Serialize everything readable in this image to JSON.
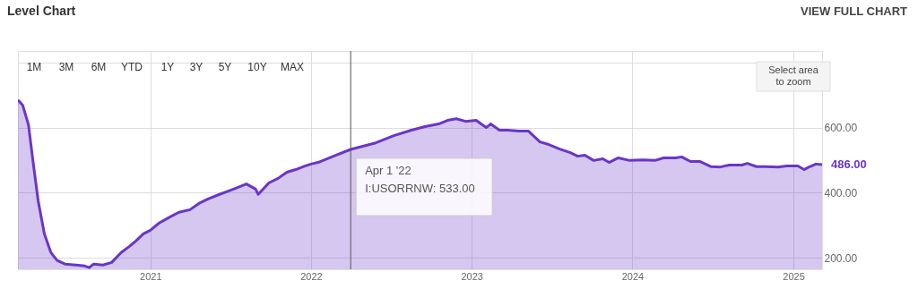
{
  "chart_data": {
    "type": "area",
    "title": "Level Chart",
    "annotations": [
      "VIEW FULL CHART",
      "1M",
      "3M",
      "6M",
      "YTD",
      "1Y",
      "3Y",
      "5Y",
      "10Y",
      "MAX",
      "Select area\nto zoom",
      {
        "text": "Apr 1 '22\nI:USORRNW: 533.00",
        "x": "2022-04-01",
        "y": 533
      },
      {
        "text": "486.00",
        "x": "2025-03-07",
        "y": 486
      }
    ],
    "x": [
      "2020-03-06",
      "2020-03-17",
      "2020-03-30",
      "2020-04-09",
      "2020-04-21",
      "2020-05-05",
      "2020-05-20",
      "2020-06-03",
      "2020-06-21",
      "2020-07-16",
      "2020-08-05",
      "2020-08-15",
      "2020-08-25",
      "2020-09-15",
      "2020-10-05",
      "2020-10-26",
      "2020-11-15",
      "2020-11-29",
      "2020-12-16",
      "2021-01-01",
      "2021-01-21",
      "2021-02-15",
      "2021-03-07",
      "2021-04-01",
      "2021-04-21",
      "2021-05-12",
      "2021-06-07",
      "2021-06-27",
      "2021-07-18",
      "2021-08-07",
      "2021-08-28",
      "2021-09-03",
      "2021-09-27",
      "2021-10-18",
      "2021-11-07",
      "2021-11-27",
      "2021-12-18",
      "2022-01-01",
      "2022-01-17",
      "2022-02-17",
      "2022-04-01",
      "2022-05-28",
      "2022-07-08",
      "2022-08-17",
      "2022-09-17",
      "2022-10-18",
      "2022-11-07",
      "2022-11-27",
      "2022-12-18",
      "2023-01-11",
      "2023-02-03",
      "2023-02-13",
      "2023-03-05",
      "2023-03-24",
      "2023-04-19",
      "2023-05-10",
      "2023-06-05",
      "2023-06-25",
      "2023-07-20",
      "2023-08-13",
      "2023-08-30",
      "2023-09-15",
      "2023-10-05",
      "2023-10-26",
      "2023-11-09",
      "2023-11-30",
      "2023-12-26",
      "2024-01-25",
      "2024-02-21",
      "2024-03-12",
      "2024-04-08",
      "2024-04-22",
      "2024-05-12",
      "2024-06-02",
      "2024-06-28",
      "2024-07-19",
      "2024-08-08",
      "2024-09-06",
      "2024-09-18",
      "2024-10-09",
      "2024-10-29",
      "2024-11-27",
      "2024-12-17",
      "2025-01-11",
      "2025-01-25",
      "2025-02-07",
      "2025-02-21",
      "2025-03-07"
    ],
    "series": [
      {
        "color": "#6a35c9",
        "values": [
          685,
          668,
          608,
          499,
          375,
          274,
          216,
          192,
          181,
          178,
          175,
          170,
          181,
          178,
          186,
          216,
          236,
          252,
          274,
          285,
          307,
          326,
          340,
          348,
          367,
          381,
          395,
          405,
          416,
          427,
          411,
          395,
          430,
          444,
          463,
          471,
          482,
          488,
          493,
          510,
          533,
          553,
          575,
          592,
          603,
          611,
          622,
          627,
          619,
          622,
          600,
          611,
          592,
          592,
          589,
          589,
          556,
          548,
          534,
          523,
          512,
          515,
          499,
          504,
          493,
          507,
          499,
          501,
          499,
          507,
          507,
          510,
          496,
          496,
          480,
          479,
          485,
          485,
          490,
          480,
          480,
          479,
          482,
          482,
          471,
          480,
          488,
          486
        ]
      }
    ],
    "xlim": [
      "2020-03-06",
      "2025-03-07"
    ],
    "xticks": [
      "2021",
      "2022",
      "2023",
      "2024",
      "2025"
    ],
    "ylim": [
      165,
      835
    ],
    "yticks": [
      {
        "value": 200,
        "label": "200.00"
      },
      {
        "value": 400,
        "label": "400.00"
      },
      {
        "value": 600,
        "label": "600.00"
      },
      {
        "value": 800,
        "label": null
      }
    ],
    "ref_lines": [
      {
        "axis": "x",
        "value": "2022-04-01",
        "color": "#555555"
      }
    ],
    "grid": true
  }
}
